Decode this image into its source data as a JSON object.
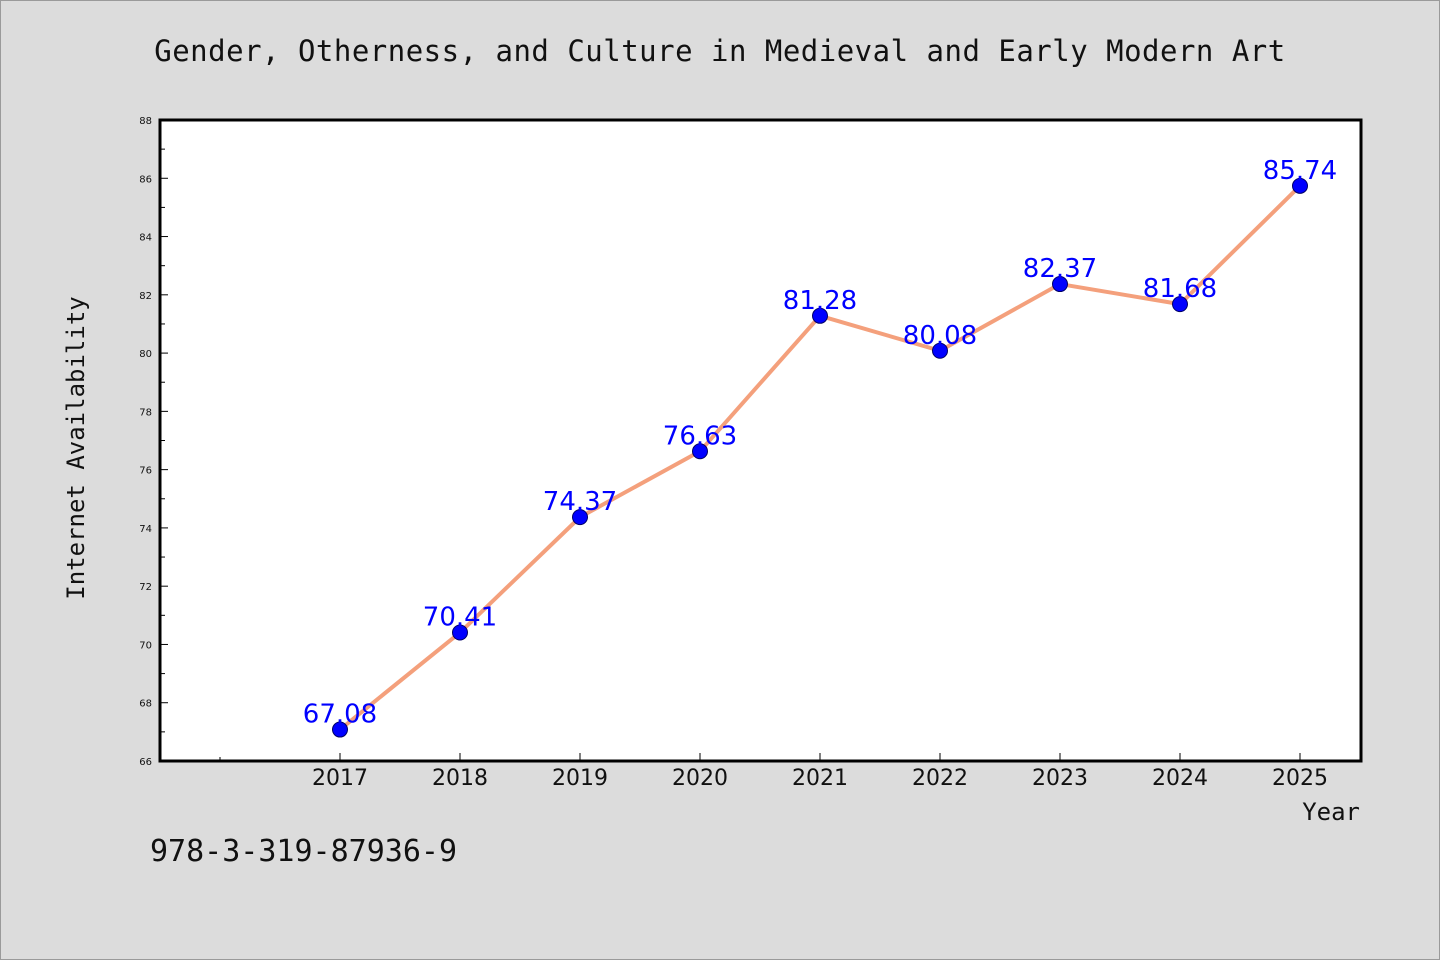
{
  "chart_data": {
    "type": "line",
    "title": "Gender, Otherness, and Culture in Medieval and Early Modern Art",
    "xlabel": "Year",
    "ylabel": "Internet Availability",
    "x": [
      "2017",
      "2018",
      "2019",
      "2020",
      "2021",
      "2022",
      "2023",
      "2024",
      "2025"
    ],
    "series": [
      {
        "values": [
          67.08,
          70.41,
          74.37,
          76.63,
          81.28,
          80.08,
          82.37,
          81.68,
          85.74
        ],
        "line_color": "#f4a07c",
        "marker_color": "#0000ff"
      }
    ],
    "data_labels": [
      "67.08",
      "70.41",
      "74.37",
      "76.63",
      "81.28",
      "80.08",
      "82.37",
      "81.68",
      "85.74"
    ],
    "ylim": [
      66,
      88
    ],
    "yticks": [
      "66",
      "68",
      "70",
      "72",
      "74",
      "76",
      "78",
      "80",
      "82",
      "84",
      "86",
      "88"
    ],
    "grid": false,
    "label_color": "#0000ff",
    "background": "#dcdcdc",
    "plot_background": "#ffffff"
  },
  "footer": {
    "isbn": "978-3-319-87936-9"
  }
}
